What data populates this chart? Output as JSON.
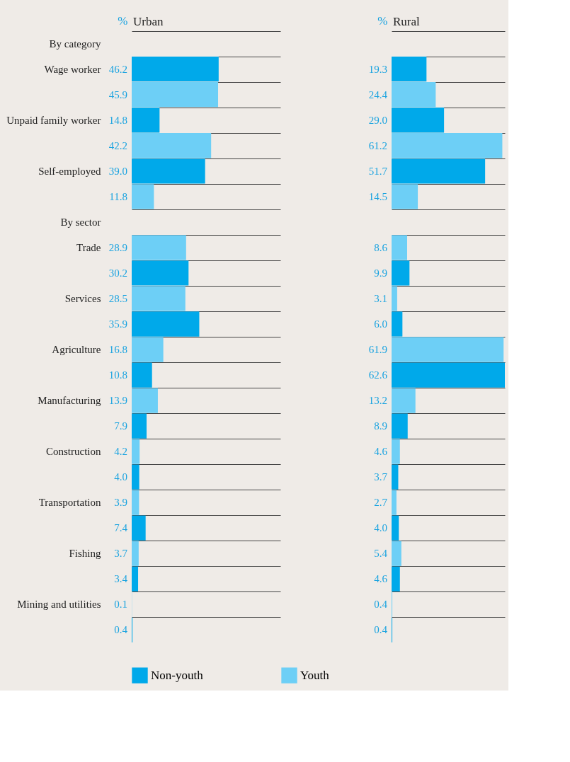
{
  "chart_data": [
    {
      "type": "bar",
      "orientation": "horizontal",
      "title": "Urban",
      "xlabel": "%",
      "xlim": [
        0,
        79
      ],
      "grid": "y",
      "legend": "bottom",
      "tick_labels": "y",
      "categories": [
        "By category",
        "Wage worker",
        null,
        "Unpaid family worker",
        null,
        "Self-employed",
        null,
        "By sector",
        "Trade",
        null,
        "Services",
        null,
        "Agriculture",
        null,
        "Manufacturing",
        null,
        "Construction",
        null,
        "Transportation",
        null,
        "Fishing",
        null,
        "Mining and utilities",
        null
      ],
      "series": [
        {
          "name": "Non-youth",
          "color": "#00a9ea",
          "values": [
            null,
            46.2,
            null,
            14.8,
            null,
            39.0,
            null,
            null,
            null,
            30.2,
            null,
            35.9,
            null,
            10.8,
            null,
            7.9,
            null,
            4.0,
            null,
            7.4,
            null,
            3.4,
            null,
            0.4
          ],
          "value_labels": [
            null,
            "46.2",
            null,
            "14.8",
            null,
            "39.0",
            null,
            null,
            null,
            "30.2",
            null,
            "35.9",
            null,
            "10.8",
            null,
            "7.9",
            null,
            "4.0",
            null,
            "7.4",
            null,
            "3.4",
            null,
            "0.4"
          ]
        },
        {
          "name": "Youth",
          "color": "#6dcff6",
          "values": [
            null,
            null,
            45.9,
            null,
            42.2,
            null,
            11.8,
            null,
            28.9,
            null,
            28.5,
            null,
            16.8,
            null,
            13.9,
            null,
            4.2,
            null,
            3.9,
            null,
            3.7,
            null,
            0.1,
            null
          ],
          "value_labels": [
            null,
            null,
            "45.9",
            null,
            "42.2",
            null,
            "11.8",
            null,
            "28.9",
            null,
            "28.5",
            null,
            "16.8",
            null,
            "13.9",
            null,
            "4.2",
            null,
            "3.9",
            null,
            "3.7",
            null,
            "0.1",
            null
          ]
        }
      ]
    },
    {
      "type": "bar",
      "orientation": "horizontal",
      "title": "Rural",
      "xlabel": "%",
      "xlim": [
        0,
        62.6
      ],
      "grid": "y",
      "tick_labels": false,
      "categories": [
        null,
        null,
        null,
        null,
        null,
        null,
        null,
        null,
        null,
        null,
        null,
        null,
        null,
        null,
        null,
        null,
        null,
        null,
        null,
        null,
        null,
        null,
        null,
        null
      ],
      "series": [
        {
          "color": "#00a9ea",
          "values": [
            null,
            19.3,
            null,
            29.0,
            null,
            51.7,
            null,
            null,
            null,
            9.9,
            null,
            6.0,
            null,
            62.6,
            null,
            8.9,
            null,
            3.7,
            null,
            4.0,
            null,
            4.6,
            null,
            0.4
          ],
          "value_labels": [
            null,
            "19.3",
            null,
            "29.0",
            null,
            "51.7",
            null,
            null,
            null,
            "9.9",
            null,
            "6.0",
            null,
            "62.6",
            null,
            "8.9",
            null,
            "3.7",
            null,
            "4.0",
            null,
            "4.6",
            null,
            "0.4"
          ]
        },
        {
          "color": "#6dcff6",
          "values": [
            null,
            null,
            24.4,
            null,
            61.2,
            null,
            14.5,
            null,
            8.6,
            null,
            3.1,
            null,
            61.9,
            null,
            13.2,
            null,
            4.6,
            null,
            2.7,
            null,
            5.4,
            null,
            0.4,
            null
          ],
          "value_labels": [
            null,
            null,
            "24.4",
            null,
            "61.2",
            null,
            "14.5",
            null,
            "8.6",
            null,
            "3.1",
            null,
            "61.9",
            null,
            "13.2",
            null,
            "4.6",
            null,
            "2.7",
            null,
            "5.4",
            null,
            "0.4",
            null
          ]
        }
      ]
    }
  ]
}
